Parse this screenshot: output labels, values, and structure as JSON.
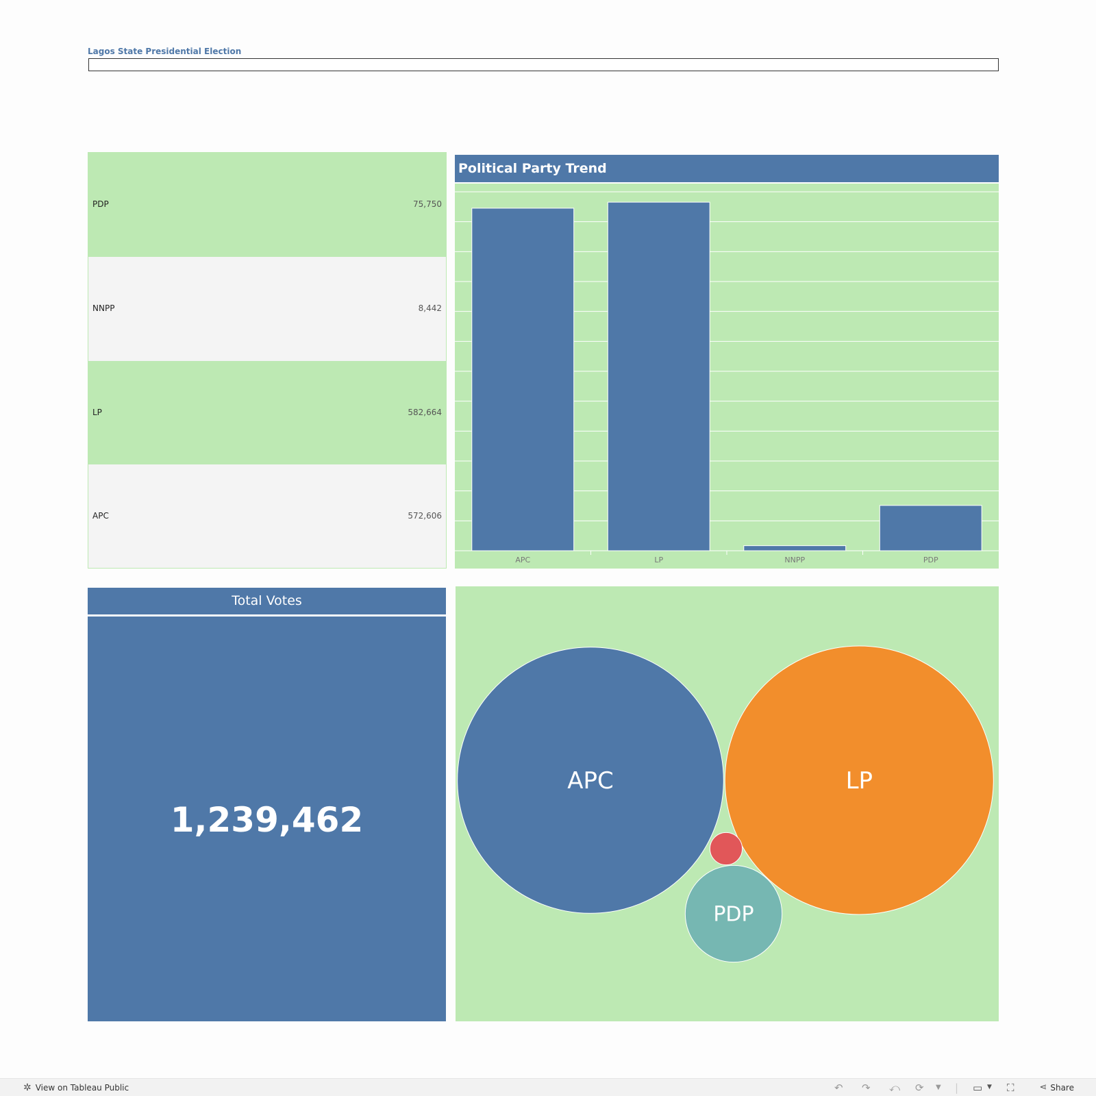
{
  "dashboard": {
    "title": "Lagos State Presidential Election"
  },
  "party_table": {
    "rows": [
      {
        "party": "PDP",
        "votes": "75,750"
      },
      {
        "party": "NNPP",
        "votes": "8,442"
      },
      {
        "party": "LP",
        "votes": "582,664"
      },
      {
        "party": "APC",
        "votes": "572,606"
      }
    ]
  },
  "bar_panel": {
    "title": "Political Party Trend"
  },
  "total_votes": {
    "title": "Total Votes",
    "value": "1,239,462"
  },
  "colors": {
    "blue": "#4f78a8",
    "green_bg": "#bde9b3",
    "orange": "#f28e2c",
    "red": "#e15759",
    "teal": "#76b7b2",
    "grey_row": "#f4f4f4"
  },
  "chart_data": [
    {
      "type": "bar",
      "title": "Political Party Trend",
      "categories": [
        "APC",
        "LP",
        "NNPP",
        "PDP"
      ],
      "values": [
        572606,
        582664,
        8442,
        75750
      ],
      "xlabel": "",
      "ylabel": "",
      "ylim": [
        0,
        600000
      ],
      "grid": true
    },
    {
      "type": "bubble",
      "categories": [
        "APC",
        "LP",
        "NNPP",
        "PDP"
      ],
      "values": [
        572606,
        582664,
        8442,
        75750
      ],
      "labels": [
        "APC",
        "LP",
        "",
        "PDP"
      ],
      "colors": [
        "#4f78a8",
        "#f28e2c",
        "#e15759",
        "#76b7b2"
      ]
    }
  ],
  "toolbar": {
    "view_label": "View on Tableau Public",
    "share_label": "Share",
    "icons": [
      "undo-icon",
      "redo-icon",
      "revert-icon",
      "refresh-icon",
      "dropdown-icon",
      "device-icon",
      "fullscreen-icon",
      "share-icon"
    ]
  }
}
